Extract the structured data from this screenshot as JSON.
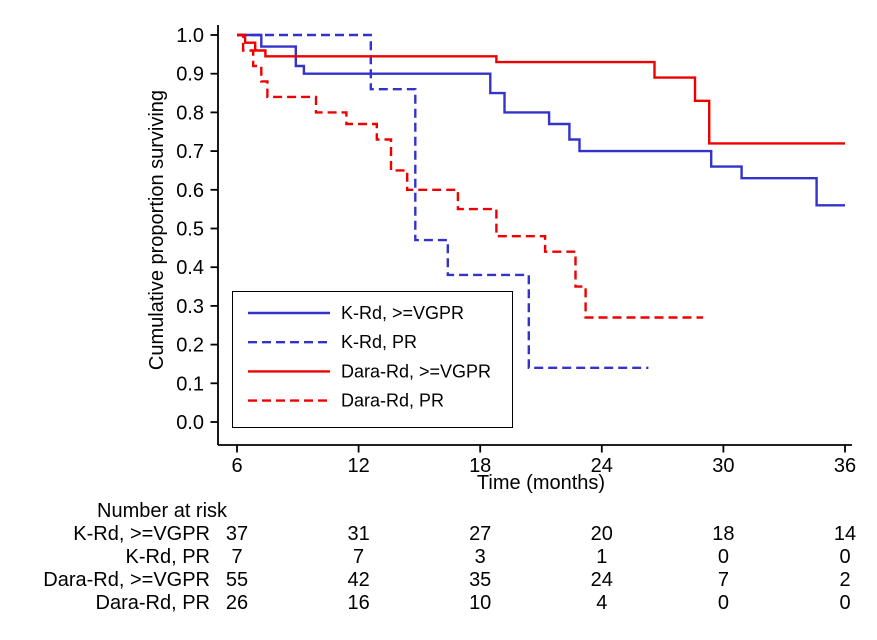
{
  "chart_data": {
    "type": "line",
    "subtype": "kaplan-meier-step",
    "title": "",
    "xlabel": "Time (months)",
    "ylabel": "Cumulative proportion surviving",
    "xlim": [
      6,
      36
    ],
    "ylim": [
      0.0,
      1.0
    ],
    "xticks": [
      6,
      12,
      18,
      24,
      30,
      36
    ],
    "yticks": [
      0.0,
      0.1,
      0.2,
      0.3,
      0.4,
      0.5,
      0.6,
      0.7,
      0.8,
      0.9,
      1.0
    ],
    "grid": false,
    "legend_position": "inside lower-left",
    "series": [
      {
        "name": "K-Rd, >=VGPR",
        "color": "#3333cc",
        "dash": "solid",
        "points": [
          [
            6,
            1.0
          ],
          [
            7.2,
            1.0
          ],
          [
            7.2,
            0.97
          ],
          [
            8.9,
            0.97
          ],
          [
            8.9,
            0.92
          ],
          [
            9.3,
            0.92
          ],
          [
            9.3,
            0.9
          ],
          [
            18.5,
            0.9
          ],
          [
            18.5,
            0.85
          ],
          [
            19.2,
            0.85
          ],
          [
            19.2,
            0.8
          ],
          [
            21.4,
            0.8
          ],
          [
            21.4,
            0.77
          ],
          [
            22.4,
            0.77
          ],
          [
            22.4,
            0.73
          ],
          [
            22.9,
            0.73
          ],
          [
            22.9,
            0.7
          ],
          [
            29.4,
            0.7
          ],
          [
            29.4,
            0.66
          ],
          [
            30.9,
            0.66
          ],
          [
            30.9,
            0.63
          ],
          [
            34.6,
            0.63
          ],
          [
            34.6,
            0.56
          ],
          [
            36,
            0.56
          ]
        ]
      },
      {
        "name": "K-Rd, PR",
        "color": "#3333cc",
        "dash": "dashed",
        "points": [
          [
            6,
            1.0
          ],
          [
            12.6,
            1.0
          ],
          [
            12.6,
            0.86
          ],
          [
            14.8,
            0.86
          ],
          [
            14.8,
            0.47
          ],
          [
            16.4,
            0.47
          ],
          [
            16.4,
            0.38
          ],
          [
            20.4,
            0.38
          ],
          [
            20.4,
            0.14
          ],
          [
            26.3,
            0.14
          ]
        ]
      },
      {
        "name": "Dara-Rd, >=VGPR",
        "color": "#ee0000",
        "dash": "solid",
        "points": [
          [
            6,
            1.0
          ],
          [
            6.4,
            1.0
          ],
          [
            6.4,
            0.98
          ],
          [
            6.9,
            0.98
          ],
          [
            6.9,
            0.96
          ],
          [
            7.4,
            0.96
          ],
          [
            7.4,
            0.945
          ],
          [
            18.8,
            0.945
          ],
          [
            18.8,
            0.93
          ],
          [
            26.6,
            0.93
          ],
          [
            26.6,
            0.89
          ],
          [
            28.6,
            0.89
          ],
          [
            28.6,
            0.83
          ],
          [
            29.3,
            0.83
          ],
          [
            29.3,
            0.72
          ],
          [
            36,
            0.72
          ]
        ]
      },
      {
        "name": "Dara-Rd, PR",
        "color": "#ee0000",
        "dash": "dashed",
        "points": [
          [
            6,
            1.0
          ],
          [
            6.3,
            1.0
          ],
          [
            6.3,
            0.96
          ],
          [
            6.8,
            0.96
          ],
          [
            6.8,
            0.92
          ],
          [
            7.2,
            0.92
          ],
          [
            7.2,
            0.88
          ],
          [
            7.5,
            0.88
          ],
          [
            7.5,
            0.84
          ],
          [
            9.9,
            0.84
          ],
          [
            9.9,
            0.8
          ],
          [
            11.4,
            0.8
          ],
          [
            11.4,
            0.77
          ],
          [
            12.9,
            0.77
          ],
          [
            12.9,
            0.73
          ],
          [
            13.6,
            0.73
          ],
          [
            13.6,
            0.65
          ],
          [
            14.4,
            0.65
          ],
          [
            14.4,
            0.6
          ],
          [
            16.9,
            0.6
          ],
          [
            16.9,
            0.55
          ],
          [
            18.8,
            0.55
          ],
          [
            18.8,
            0.48
          ],
          [
            21.2,
            0.48
          ],
          [
            21.2,
            0.44
          ],
          [
            22.7,
            0.44
          ],
          [
            22.7,
            0.35
          ],
          [
            23.2,
            0.35
          ],
          [
            23.2,
            0.27
          ],
          [
            29.0,
            0.27
          ]
        ]
      }
    ]
  },
  "risk_table": {
    "title": "Number at risk",
    "times": [
      6,
      12,
      18,
      24,
      30,
      36
    ],
    "rows": [
      {
        "label": "K-Rd, >=VGPR",
        "counts": [
          37,
          31,
          27,
          20,
          18,
          14
        ]
      },
      {
        "label": "K-Rd, PR",
        "counts": [
          7,
          7,
          3,
          1,
          0,
          0
        ]
      },
      {
        "label": "Dara-Rd, >=VGPR",
        "counts": [
          55,
          42,
          35,
          24,
          7,
          2
        ]
      },
      {
        "label": "Dara-Rd, PR",
        "counts": [
          26,
          16,
          10,
          4,
          0,
          0
        ]
      }
    ]
  },
  "colors": {
    "blue": "#3333cc",
    "red": "#ee0000",
    "axis": "#000000",
    "background": "#ffffff"
  }
}
